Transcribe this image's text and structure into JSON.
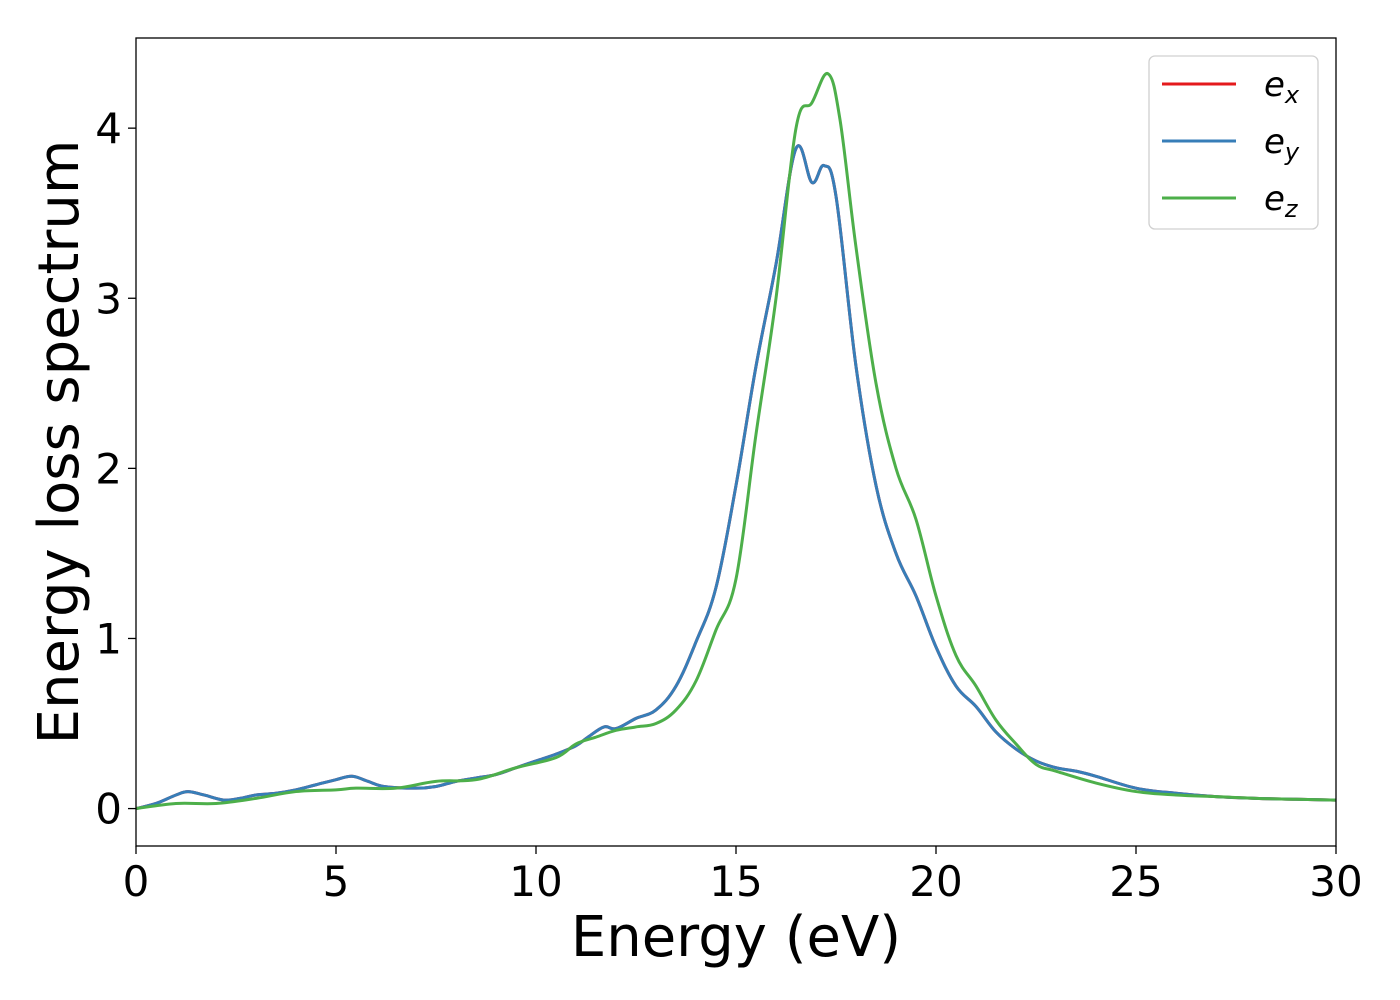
{
  "chart_data": {
    "type": "line",
    "xlabel": "Energy (eV)",
    "ylabel": "Energy loss spectrum",
    "xlim": [
      0,
      30
    ],
    "ylim": [
      -0.22,
      4.53
    ],
    "xticks": [
      0,
      5,
      10,
      15,
      20,
      25,
      30
    ],
    "xtick_labels": [
      "0",
      "5",
      "10",
      "15",
      "20",
      "25",
      "30"
    ],
    "yticks": [
      0,
      1,
      2,
      3,
      4
    ],
    "ytick_labels": [
      "0",
      "1",
      "2",
      "3",
      "4"
    ],
    "grid": false,
    "legend_position": "top-right",
    "series": [
      {
        "name": "e_x",
        "legend_base": "e",
        "legend_sub": "x",
        "color": "#e41a1c",
        "x": [
          0,
          0.5,
          1.0,
          1.3,
          1.7,
          2.2,
          2.6,
          3.0,
          3.5,
          4.0,
          4.5,
          5.0,
          5.4,
          5.8,
          6.2,
          7.0,
          7.5,
          8.0,
          8.5,
          9.0,
          9.5,
          10.0,
          10.5,
          11.0,
          11.3,
          11.7,
          12.0,
          12.5,
          13.0,
          13.5,
          14.0,
          14.5,
          15.0,
          15.5,
          16.0,
          16.5,
          16.9,
          17.2,
          17.5,
          18.0,
          18.5,
          19.0,
          19.5,
          20.0,
          20.5,
          21.0,
          21.5,
          22.0,
          22.5,
          23.0,
          23.5,
          24.0,
          25.0,
          26.0,
          27.0,
          28.0,
          29.0,
          30.0
        ],
        "y": [
          0.0,
          0.03,
          0.08,
          0.1,
          0.08,
          0.05,
          0.06,
          0.08,
          0.09,
          0.11,
          0.14,
          0.17,
          0.19,
          0.16,
          0.13,
          0.12,
          0.13,
          0.16,
          0.18,
          0.2,
          0.24,
          0.28,
          0.32,
          0.37,
          0.42,
          0.48,
          0.47,
          0.53,
          0.58,
          0.72,
          0.98,
          1.3,
          1.9,
          2.6,
          3.2,
          3.88,
          3.68,
          3.78,
          3.6,
          2.6,
          1.9,
          1.5,
          1.25,
          0.95,
          0.72,
          0.6,
          0.45,
          0.35,
          0.28,
          0.24,
          0.22,
          0.19,
          0.12,
          0.09,
          0.07,
          0.06,
          0.055,
          0.05
        ]
      },
      {
        "name": "e_y",
        "legend_base": "e",
        "legend_sub": "y",
        "color": "#377eb8",
        "x": [
          0,
          0.5,
          1.0,
          1.3,
          1.7,
          2.2,
          2.6,
          3.0,
          3.5,
          4.0,
          4.5,
          5.0,
          5.4,
          5.8,
          6.2,
          7.0,
          7.5,
          8.0,
          8.5,
          9.0,
          9.5,
          10.0,
          10.5,
          11.0,
          11.3,
          11.7,
          12.0,
          12.5,
          13.0,
          13.5,
          14.0,
          14.5,
          15.0,
          15.5,
          16.0,
          16.5,
          16.9,
          17.2,
          17.5,
          18.0,
          18.5,
          19.0,
          19.5,
          20.0,
          20.5,
          21.0,
          21.5,
          22.0,
          22.5,
          23.0,
          23.5,
          24.0,
          25.0,
          26.0,
          27.0,
          28.0,
          29.0,
          30.0
        ],
        "y": [
          0.0,
          0.03,
          0.08,
          0.1,
          0.08,
          0.05,
          0.06,
          0.08,
          0.09,
          0.11,
          0.14,
          0.17,
          0.19,
          0.16,
          0.13,
          0.12,
          0.13,
          0.16,
          0.18,
          0.2,
          0.24,
          0.28,
          0.32,
          0.37,
          0.42,
          0.48,
          0.47,
          0.53,
          0.58,
          0.72,
          0.98,
          1.3,
          1.9,
          2.6,
          3.2,
          3.88,
          3.68,
          3.78,
          3.6,
          2.6,
          1.9,
          1.5,
          1.25,
          0.95,
          0.72,
          0.6,
          0.45,
          0.35,
          0.28,
          0.24,
          0.22,
          0.19,
          0.12,
          0.09,
          0.07,
          0.06,
          0.055,
          0.05
        ]
      },
      {
        "name": "e_z",
        "legend_base": "e",
        "legend_sub": "z",
        "color": "#4daf4a",
        "x": [
          0,
          1.0,
          2.0,
          3.0,
          4.0,
          5.0,
          5.5,
          6.5,
          7.5,
          8.5,
          9.5,
          10.5,
          11.0,
          11.5,
          12.0,
          12.5,
          13.0,
          13.5,
          14.0,
          14.5,
          15.0,
          15.5,
          16.0,
          16.5,
          16.9,
          17.3,
          17.6,
          18.0,
          18.5,
          19.0,
          19.5,
          20.0,
          20.5,
          21.0,
          21.5,
          22.0,
          22.5,
          23.0,
          24.0,
          25.0,
          26.0,
          27.0,
          28.0,
          29.0,
          30.0
        ],
        "y": [
          0.0,
          0.03,
          0.03,
          0.06,
          0.1,
          0.11,
          0.12,
          0.12,
          0.16,
          0.17,
          0.24,
          0.3,
          0.38,
          0.42,
          0.46,
          0.48,
          0.5,
          0.58,
          0.75,
          1.05,
          1.35,
          2.2,
          3.0,
          4.0,
          4.15,
          4.32,
          4.05,
          3.3,
          2.5,
          2.0,
          1.7,
          1.25,
          0.9,
          0.72,
          0.52,
          0.38,
          0.26,
          0.22,
          0.15,
          0.1,
          0.08,
          0.07,
          0.06,
          0.055,
          0.05
        ]
      }
    ]
  }
}
